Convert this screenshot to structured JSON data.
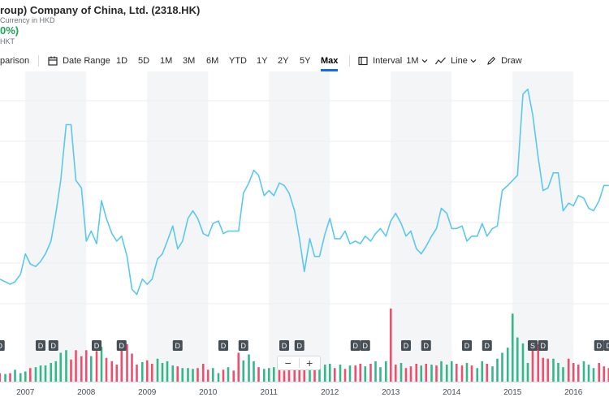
{
  "header": {
    "title": "roup) Company of China, Ltd. (2318.HK)",
    "subtitle": "Currency in HKD",
    "change": "0%)",
    "currency_small": "HKT"
  },
  "toolbar": {
    "comparison": "parison",
    "date_range": "Date Range",
    "ranges": [
      "1D",
      "5D",
      "1M",
      "3M",
      "6M",
      "YTD",
      "1Y",
      "2Y",
      "5Y",
      "Max"
    ],
    "active_range": "Max",
    "interval_label": "Interval",
    "interval_value": "1M",
    "chart_type": "Line",
    "draw": "Draw"
  },
  "zoom": {
    "minus": "−",
    "plus": "+"
  },
  "colors": {
    "line": "#5bc8ee",
    "up": "#34b88a",
    "down": "#ee4f6e",
    "band": "#f3f5f6",
    "marker_bg": "#464e56",
    "accent": "#0f69ff"
  },
  "chart_data": {
    "type": "line",
    "title": "",
    "x_ticks": [
      "2007",
      "2008",
      "2009",
      "2010",
      "2011",
      "2012",
      "2013",
      "2014",
      "2015",
      "2016"
    ],
    "x_range": [
      2006.5833,
      2016.5833
    ],
    "y_range": [
      0,
      100
    ],
    "grid": true,
    "price": [
      [
        2006.58,
        18
      ],
      [
        2006.67,
        17
      ],
      [
        2006.75,
        16
      ],
      [
        2006.83,
        17
      ],
      [
        2006.92,
        20
      ],
      [
        2007.0,
        28
      ],
      [
        2007.08,
        24
      ],
      [
        2007.17,
        23
      ],
      [
        2007.25,
        25
      ],
      [
        2007.33,
        28
      ],
      [
        2007.42,
        33
      ],
      [
        2007.5,
        44
      ],
      [
        2007.58,
        57
      ],
      [
        2007.67,
        79
      ],
      [
        2007.75,
        79
      ],
      [
        2007.83,
        57
      ],
      [
        2007.92,
        54
      ],
      [
        2008.0,
        33
      ],
      [
        2008.08,
        37
      ],
      [
        2008.17,
        32
      ],
      [
        2008.25,
        49
      ],
      [
        2008.33,
        42
      ],
      [
        2008.42,
        36
      ],
      [
        2008.5,
        33
      ],
      [
        2008.58,
        35
      ],
      [
        2008.67,
        27
      ],
      [
        2008.75,
        14
      ],
      [
        2008.83,
        12
      ],
      [
        2008.92,
        18
      ],
      [
        2009.0,
        16
      ],
      [
        2009.08,
        18
      ],
      [
        2009.17,
        26
      ],
      [
        2009.25,
        28
      ],
      [
        2009.33,
        33
      ],
      [
        2009.42,
        39
      ],
      [
        2009.5,
        30
      ],
      [
        2009.58,
        33
      ],
      [
        2009.67,
        42
      ],
      [
        2009.75,
        45
      ],
      [
        2009.83,
        42
      ],
      [
        2009.92,
        36
      ],
      [
        2010.0,
        35
      ],
      [
        2010.08,
        40
      ],
      [
        2010.17,
        41
      ],
      [
        2010.25,
        36
      ],
      [
        2010.33,
        37
      ],
      [
        2010.42,
        37
      ],
      [
        2010.5,
        37
      ],
      [
        2010.58,
        52
      ],
      [
        2010.67,
        56
      ],
      [
        2010.75,
        61
      ],
      [
        2010.83,
        59
      ],
      [
        2010.92,
        51
      ],
      [
        2011.0,
        53
      ],
      [
        2011.08,
        51
      ],
      [
        2011.17,
        56
      ],
      [
        2011.25,
        55
      ],
      [
        2011.33,
        52
      ],
      [
        2011.42,
        45
      ],
      [
        2011.5,
        34
      ],
      [
        2011.58,
        21
      ],
      [
        2011.67,
        34
      ],
      [
        2011.75,
        27
      ],
      [
        2011.83,
        27
      ],
      [
        2011.92,
        36
      ],
      [
        2012.0,
        42
      ],
      [
        2012.08,
        34
      ],
      [
        2012.17,
        34
      ],
      [
        2012.25,
        37
      ],
      [
        2012.33,
        32
      ],
      [
        2012.42,
        33
      ],
      [
        2012.5,
        32
      ],
      [
        2012.58,
        35
      ],
      [
        2012.67,
        33
      ],
      [
        2012.75,
        36
      ],
      [
        2012.83,
        38
      ],
      [
        2012.92,
        35
      ],
      [
        2013.0,
        41
      ],
      [
        2013.08,
        44
      ],
      [
        2013.17,
        40
      ],
      [
        2013.25,
        35
      ],
      [
        2013.33,
        37
      ],
      [
        2013.42,
        30
      ],
      [
        2013.5,
        28
      ],
      [
        2013.58,
        31
      ],
      [
        2013.67,
        35
      ],
      [
        2013.75,
        38
      ],
      [
        2013.83,
        46
      ],
      [
        2013.92,
        44
      ],
      [
        2014.0,
        38
      ],
      [
        2014.08,
        38
      ],
      [
        2014.17,
        39
      ],
      [
        2014.25,
        33
      ],
      [
        2014.33,
        35
      ],
      [
        2014.42,
        35
      ],
      [
        2014.5,
        40
      ],
      [
        2014.58,
        35
      ],
      [
        2014.67,
        38
      ],
      [
        2014.75,
        39
      ],
      [
        2014.83,
        53
      ],
      [
        2014.92,
        55
      ],
      [
        2015.0,
        57
      ],
      [
        2015.08,
        59
      ],
      [
        2015.17,
        91
      ],
      [
        2015.25,
        93
      ],
      [
        2015.33,
        83
      ],
      [
        2015.42,
        66
      ],
      [
        2015.5,
        53
      ],
      [
        2015.58,
        54
      ],
      [
        2015.67,
        60
      ],
      [
        2015.75,
        60
      ],
      [
        2015.83,
        45
      ],
      [
        2015.92,
        48
      ],
      [
        2016.0,
        47
      ],
      [
        2016.08,
        51
      ],
      [
        2016.17,
        50
      ],
      [
        2016.25,
        46
      ],
      [
        2016.33,
        45
      ],
      [
        2016.42,
        49
      ],
      [
        2016.5,
        55
      ],
      [
        2016.58,
        55
      ]
    ],
    "volume": [
      {
        "x": 2006.58,
        "v": 10,
        "up": false
      },
      {
        "x": 2006.67,
        "v": 9,
        "up": true
      },
      {
        "x": 2006.75,
        "v": 10,
        "up": false
      },
      {
        "x": 2006.83,
        "v": 14,
        "up": true
      },
      {
        "x": 2006.92,
        "v": 10,
        "up": true
      },
      {
        "x": 2007.0,
        "v": 12,
        "up": true
      },
      {
        "x": 2007.08,
        "v": 16,
        "up": false
      },
      {
        "x": 2007.17,
        "v": 17,
        "up": true
      },
      {
        "x": 2007.25,
        "v": 19,
        "up": true
      },
      {
        "x": 2007.33,
        "v": 19,
        "up": true
      },
      {
        "x": 2007.42,
        "v": 22,
        "up": true
      },
      {
        "x": 2007.5,
        "v": 24,
        "up": true
      },
      {
        "x": 2007.58,
        "v": 34,
        "up": true
      },
      {
        "x": 2007.67,
        "v": 37,
        "up": true
      },
      {
        "x": 2007.75,
        "v": 26,
        "up": false
      },
      {
        "x": 2007.83,
        "v": 37,
        "up": false
      },
      {
        "x": 2007.92,
        "v": 30,
        "up": false
      },
      {
        "x": 2008.0,
        "v": 37,
        "up": false
      },
      {
        "x": 2008.08,
        "v": 30,
        "up": true
      },
      {
        "x": 2008.17,
        "v": 36,
        "up": false
      },
      {
        "x": 2008.25,
        "v": 41,
        "up": true
      },
      {
        "x": 2008.33,
        "v": 28,
        "up": false
      },
      {
        "x": 2008.42,
        "v": 24,
        "up": false
      },
      {
        "x": 2008.5,
        "v": 20,
        "up": false
      },
      {
        "x": 2008.58,
        "v": 40,
        "up": false
      },
      {
        "x": 2008.67,
        "v": 44,
        "up": false
      },
      {
        "x": 2008.75,
        "v": 33,
        "up": false
      },
      {
        "x": 2008.83,
        "v": 20,
        "up": false
      },
      {
        "x": 2008.92,
        "v": 23,
        "up": true
      },
      {
        "x": 2009.0,
        "v": 25,
        "up": false
      },
      {
        "x": 2009.08,
        "v": 21,
        "up": false
      },
      {
        "x": 2009.17,
        "v": 27,
        "up": true
      },
      {
        "x": 2009.25,
        "v": 22,
        "up": true
      },
      {
        "x": 2009.33,
        "v": 24,
        "up": true
      },
      {
        "x": 2009.42,
        "v": 19,
        "up": true
      },
      {
        "x": 2009.5,
        "v": 18,
        "up": false
      },
      {
        "x": 2009.58,
        "v": 16,
        "up": true
      },
      {
        "x": 2009.67,
        "v": 16,
        "up": true
      },
      {
        "x": 2009.75,
        "v": 15,
        "up": true
      },
      {
        "x": 2009.83,
        "v": 16,
        "up": false
      },
      {
        "x": 2009.92,
        "v": 21,
        "up": false
      },
      {
        "x": 2010.0,
        "v": 14,
        "up": false
      },
      {
        "x": 2010.08,
        "v": 16,
        "up": true
      },
      {
        "x": 2010.17,
        "v": 10,
        "up": true
      },
      {
        "x": 2010.25,
        "v": 14,
        "up": false
      },
      {
        "x": 2010.33,
        "v": 17,
        "up": true
      },
      {
        "x": 2010.42,
        "v": 13,
        "up": false
      },
      {
        "x": 2010.5,
        "v": 34,
        "up": false
      },
      {
        "x": 2010.58,
        "v": 25,
        "up": true
      },
      {
        "x": 2010.67,
        "v": 32,
        "up": true
      },
      {
        "x": 2010.75,
        "v": 24,
        "up": true
      },
      {
        "x": 2010.83,
        "v": 17,
        "up": false
      },
      {
        "x": 2010.92,
        "v": 15,
        "up": true
      },
      {
        "x": 2011.0,
        "v": 16,
        "up": true
      },
      {
        "x": 2011.08,
        "v": 17,
        "up": true
      },
      {
        "x": 2011.17,
        "v": 15,
        "up": false
      },
      {
        "x": 2011.25,
        "v": 13,
        "up": false
      },
      {
        "x": 2011.33,
        "v": 18,
        "up": false
      },
      {
        "x": 2011.42,
        "v": 16,
        "up": false
      },
      {
        "x": 2011.5,
        "v": 20,
        "up": false
      },
      {
        "x": 2011.58,
        "v": 30,
        "up": false
      },
      {
        "x": 2011.67,
        "v": 25,
        "up": true
      },
      {
        "x": 2011.75,
        "v": 22,
        "up": false
      },
      {
        "x": 2011.83,
        "v": 20,
        "up": true
      },
      {
        "x": 2011.92,
        "v": 20,
        "up": true
      },
      {
        "x": 2012.0,
        "v": 21,
        "up": true
      },
      {
        "x": 2012.08,
        "v": 16,
        "up": false
      },
      {
        "x": 2012.17,
        "v": 20,
        "up": true
      },
      {
        "x": 2012.25,
        "v": 15,
        "up": false
      },
      {
        "x": 2012.33,
        "v": 19,
        "up": true
      },
      {
        "x": 2012.42,
        "v": 19,
        "up": false
      },
      {
        "x": 2012.5,
        "v": 21,
        "up": false
      },
      {
        "x": 2012.58,
        "v": 18,
        "up": true
      },
      {
        "x": 2012.67,
        "v": 21,
        "up": false
      },
      {
        "x": 2012.75,
        "v": 24,
        "up": true
      },
      {
        "x": 2012.83,
        "v": 17,
        "up": true
      },
      {
        "x": 2012.92,
        "v": 24,
        "up": true
      },
      {
        "x": 2013.0,
        "v": 86,
        "up": false
      },
      {
        "x": 2013.08,
        "v": 20,
        "up": false
      },
      {
        "x": 2013.17,
        "v": 22,
        "up": true
      },
      {
        "x": 2013.25,
        "v": 16,
        "up": false
      },
      {
        "x": 2013.33,
        "v": 18,
        "up": false
      },
      {
        "x": 2013.42,
        "v": 21,
        "up": false
      },
      {
        "x": 2013.5,
        "v": 19,
        "up": true
      },
      {
        "x": 2013.58,
        "v": 21,
        "up": false
      },
      {
        "x": 2013.67,
        "v": 20,
        "up": true
      },
      {
        "x": 2013.75,
        "v": 19,
        "up": false
      },
      {
        "x": 2013.83,
        "v": 24,
        "up": true
      },
      {
        "x": 2013.92,
        "v": 20,
        "up": true
      },
      {
        "x": 2014.0,
        "v": 24,
        "up": true
      },
      {
        "x": 2014.08,
        "v": 21,
        "up": false
      },
      {
        "x": 2014.17,
        "v": 19,
        "up": false
      },
      {
        "x": 2014.25,
        "v": 22,
        "up": true
      },
      {
        "x": 2014.33,
        "v": 19,
        "up": false
      },
      {
        "x": 2014.42,
        "v": 16,
        "up": true
      },
      {
        "x": 2014.5,
        "v": 24,
        "up": true
      },
      {
        "x": 2014.58,
        "v": 21,
        "up": false
      },
      {
        "x": 2014.67,
        "v": 18,
        "up": true
      },
      {
        "x": 2014.75,
        "v": 27,
        "up": true
      },
      {
        "x": 2014.83,
        "v": 34,
        "up": true
      },
      {
        "x": 2014.92,
        "v": 40,
        "up": true
      },
      {
        "x": 2015.0,
        "v": 80,
        "up": true
      },
      {
        "x": 2015.08,
        "v": 52,
        "up": true
      },
      {
        "x": 2015.17,
        "v": 45,
        "up": true
      },
      {
        "x": 2015.25,
        "v": 22,
        "up": true
      },
      {
        "x": 2015.33,
        "v": 38,
        "up": false
      },
      {
        "x": 2015.42,
        "v": 44,
        "up": false
      },
      {
        "x": 2015.5,
        "v": 28,
        "up": false
      },
      {
        "x": 2015.58,
        "v": 27,
        "up": false
      },
      {
        "x": 2015.67,
        "v": 27,
        "up": true
      },
      {
        "x": 2015.75,
        "v": 22,
        "up": true
      },
      {
        "x": 2015.83,
        "v": 17,
        "up": true
      },
      {
        "x": 2015.92,
        "v": 27,
        "up": false
      },
      {
        "x": 2016.0,
        "v": 22,
        "up": false
      },
      {
        "x": 2016.08,
        "v": 20,
        "up": false
      },
      {
        "x": 2016.17,
        "v": 24,
        "up": true
      },
      {
        "x": 2016.25,
        "v": 20,
        "up": true
      },
      {
        "x": 2016.33,
        "v": 16,
        "up": true
      },
      {
        "x": 2016.42,
        "v": 22,
        "up": false
      },
      {
        "x": 2016.5,
        "v": 18,
        "up": false
      },
      {
        "x": 2016.58,
        "v": 16,
        "up": false
      }
    ],
    "markers": [
      {
        "x": 2006.58,
        "label": "D"
      },
      {
        "x": 2007.25,
        "label": "D"
      },
      {
        "x": 2007.46,
        "label": "D"
      },
      {
        "x": 2008.17,
        "label": "D"
      },
      {
        "x": 2008.58,
        "label": "D"
      },
      {
        "x": 2009.5,
        "label": "D"
      },
      {
        "x": 2010.25,
        "label": "D"
      },
      {
        "x": 2010.58,
        "label": "D"
      },
      {
        "x": 2011.25,
        "label": "D"
      },
      {
        "x": 2011.5,
        "label": "D"
      },
      {
        "x": 2012.42,
        "label": "D"
      },
      {
        "x": 2012.58,
        "label": "D"
      },
      {
        "x": 2013.25,
        "label": "D"
      },
      {
        "x": 2013.58,
        "label": "D"
      },
      {
        "x": 2014.25,
        "label": "D"
      },
      {
        "x": 2014.58,
        "label": "D"
      },
      {
        "x": 2015.33,
        "label": "S"
      },
      {
        "x": 2015.5,
        "label": "D"
      },
      {
        "x": 2016.42,
        "label": "D"
      },
      {
        "x": 2016.58,
        "label": "D"
      }
    ]
  }
}
